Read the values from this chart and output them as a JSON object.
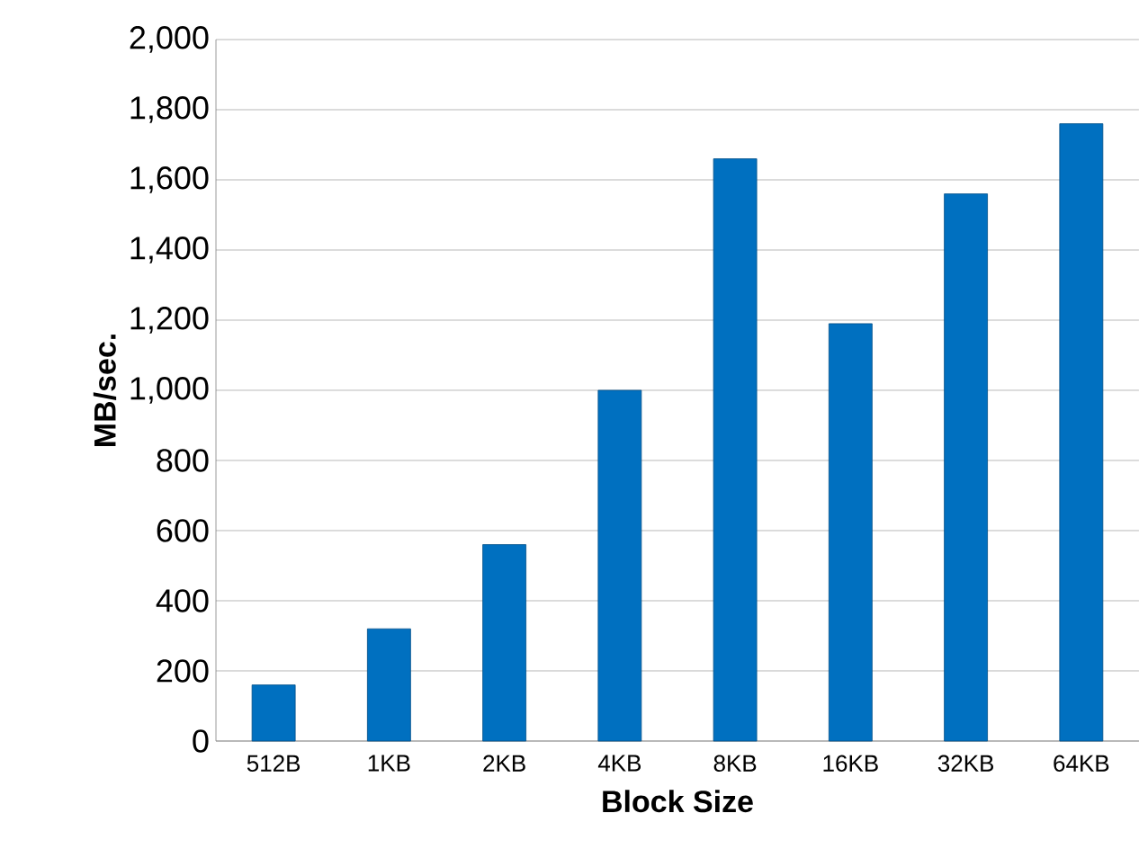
{
  "chart_data": {
    "type": "bar",
    "xlabel": "Block Size",
    "ylabel": "MB/sec.",
    "categories": [
      "512B",
      "1KB",
      "2KB",
      "4KB",
      "8KB",
      "16KB",
      "32KB",
      "64KB"
    ],
    "values": [
      160,
      320,
      560,
      1000,
      1660,
      1190,
      1560,
      1760
    ],
    "color": "#0070c0",
    "ylim": [
      0,
      2000
    ],
    "yticks": [
      {
        "value": 0,
        "label": "0"
      },
      {
        "value": 200,
        "label": "200"
      },
      {
        "value": 400,
        "label": "400"
      },
      {
        "value": 600,
        "label": "600"
      },
      {
        "value": 800,
        "label": "800"
      },
      {
        "value": 1000,
        "label": "1,000"
      },
      {
        "value": 1200,
        "label": "1,200"
      },
      {
        "value": 1400,
        "label": "1,400"
      },
      {
        "value": 1600,
        "label": "1,600"
      },
      {
        "value": 1800,
        "label": "1,800"
      },
      {
        "value": 2000,
        "label": "2,000"
      }
    ],
    "grid": "y"
  }
}
